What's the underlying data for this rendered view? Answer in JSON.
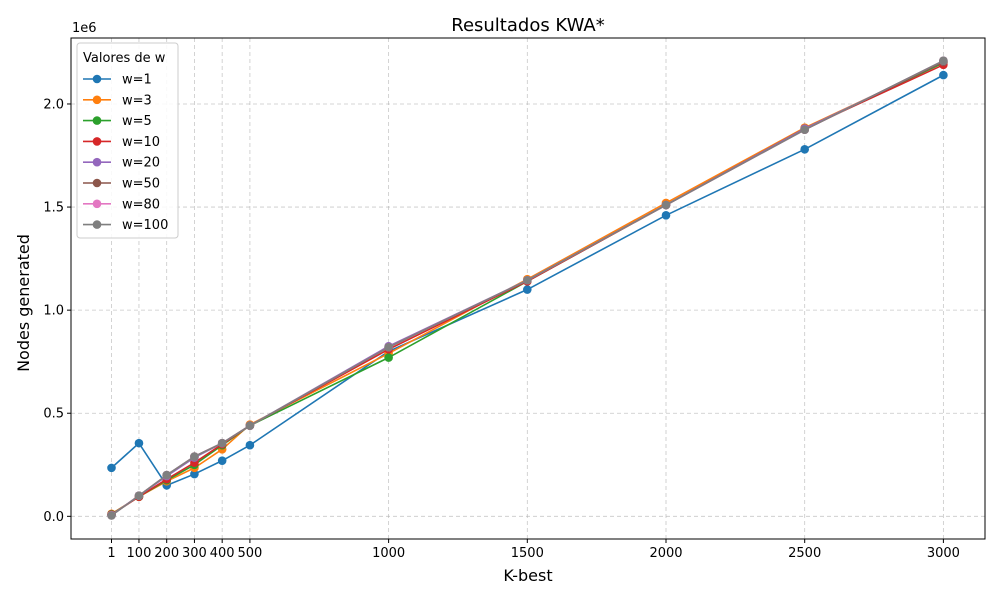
{
  "chart_data": {
    "type": "line",
    "title": "Resultados KWA*",
    "xlabel": "K-best",
    "ylabel": "Nodes generated",
    "y_offset_label": "1e6",
    "x": [
      1,
      100,
      200,
      300,
      400,
      500,
      1000,
      1500,
      2000,
      2500,
      3000
    ],
    "x_ticks": [
      1,
      100,
      200,
      300,
      400,
      500,
      1000,
      1500,
      2000,
      2500,
      3000
    ],
    "y_ticks": [
      0.0,
      0.5,
      1.0,
      1.5,
      2.0
    ],
    "y_tick_labels": [
      "0.0",
      "0.5",
      "1.0",
      "1.5",
      "2.0"
    ],
    "xlim": [
      -145,
      3150
    ],
    "ylim": [
      -0.11,
      2.32
    ],
    "grid": true,
    "legend_title": "Valores de w",
    "legend_position": "top-left",
    "series": [
      {
        "name": "w=1",
        "color": "#1f77b4",
        "values": [
          0.235,
          0.355,
          0.15,
          0.205,
          0.27,
          0.345,
          0.8,
          1.1,
          1.46,
          1.78,
          2.14
        ]
      },
      {
        "name": "w=3",
        "color": "#ff7f0e",
        "values": [
          0.012,
          0.095,
          0.17,
          0.235,
          0.325,
          0.445,
          0.79,
          1.15,
          1.52,
          1.885,
          2.2
        ]
      },
      {
        "name": "w=5",
        "color": "#2ca02c",
        "values": [
          0.01,
          0.095,
          0.175,
          0.25,
          0.345,
          0.44,
          0.77,
          1.14,
          1.51,
          1.88,
          2.2
        ]
      },
      {
        "name": "w=10",
        "color": "#d62728",
        "values": [
          0.008,
          0.095,
          0.18,
          0.26,
          0.35,
          0.44,
          0.81,
          1.14,
          1.51,
          1.88,
          2.19
        ]
      },
      {
        "name": "w=20",
        "color": "#9467bd",
        "values": [
          0.006,
          0.1,
          0.195,
          0.285,
          0.355,
          0.44,
          0.825,
          1.145,
          1.51,
          1.88,
          2.205
        ]
      },
      {
        "name": "w=50",
        "color": "#8c564b",
        "values": [
          0.005,
          0.1,
          0.2,
          0.29,
          0.355,
          0.44,
          0.82,
          1.145,
          1.51,
          1.875,
          2.205
        ]
      },
      {
        "name": "w=80",
        "color": "#e377c2",
        "values": [
          0.005,
          0.1,
          0.2,
          0.29,
          0.355,
          0.44,
          0.82,
          1.145,
          1.51,
          1.875,
          2.21
        ]
      },
      {
        "name": "w=100",
        "color": "#7f7f7f",
        "values": [
          0.004,
          0.1,
          0.2,
          0.29,
          0.355,
          0.44,
          0.82,
          1.145,
          1.51,
          1.875,
          2.21
        ]
      }
    ]
  }
}
